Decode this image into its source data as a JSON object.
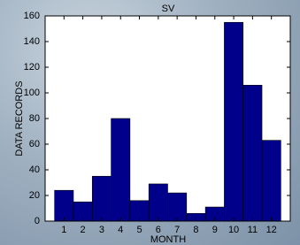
{
  "chart_data": {
    "type": "bar",
    "title": "SV",
    "x_label": "MONTH",
    "y_label": "DATA RECORDS",
    "x": [
      1,
      2,
      3,
      4,
      5,
      6,
      7,
      8,
      9,
      10,
      11,
      12
    ],
    "values": [
      24,
      15,
      35,
      80,
      16,
      29,
      22,
      6,
      11,
      155,
      106,
      63
    ],
    "color": "#00008b",
    "xlim": [
      0,
      13
    ],
    "xticks": [
      1,
      2,
      3,
      4,
      5,
      6,
      7,
      8,
      9,
      10,
      11,
      12
    ],
    "ylim": [
      0,
      160
    ],
    "yticks": [
      0,
      20,
      40,
      60,
      80,
      100,
      120,
      140,
      160
    ]
  }
}
